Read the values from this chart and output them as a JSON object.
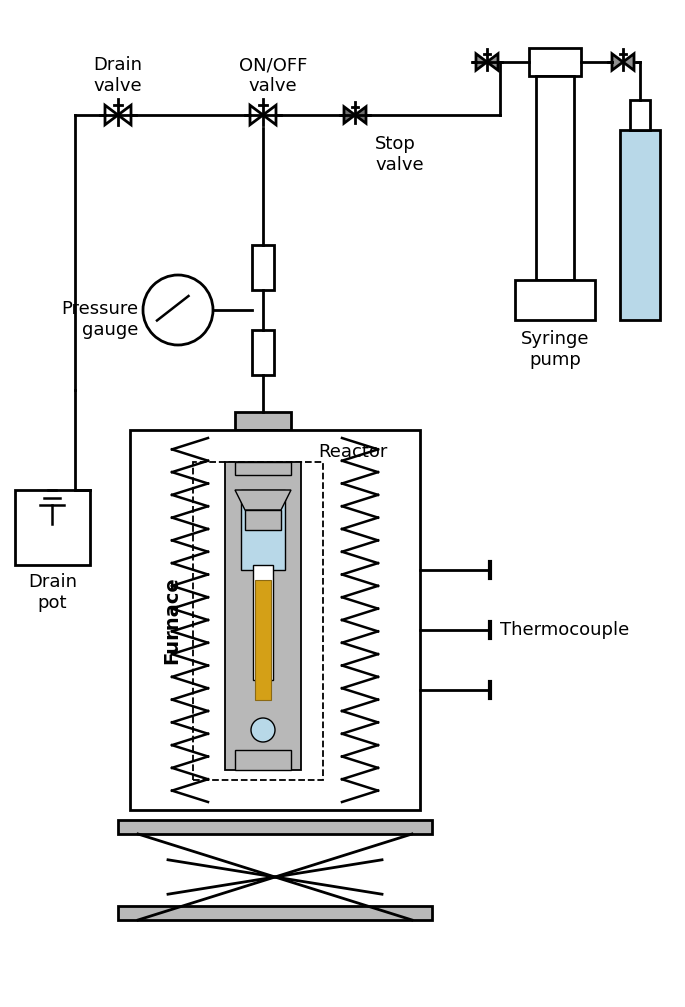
{
  "bg_color": "#ffffff",
  "lc": "#000000",
  "gray": "#909090",
  "light_gray": "#b8b8b8",
  "dark_gray": "#707070",
  "light_blue": "#b8d8e8",
  "valve_gray": "#909090",
  "yellow": "#d4a017",
  "pipe_lw": 2.0,
  "labels": {
    "drain_valve": "Drain\nvalve",
    "onoff_valve": "ON/OFF\nvalve",
    "stop_valve": "Stop\nvalve",
    "pressure_gauge": "Pressure\ngauge",
    "reactor": "Reactor",
    "furnace": "Furnace",
    "drain_pot": "Drain\npot",
    "syringe_pump": "Syringe\npump",
    "thermocouple": "Thermocouple"
  }
}
